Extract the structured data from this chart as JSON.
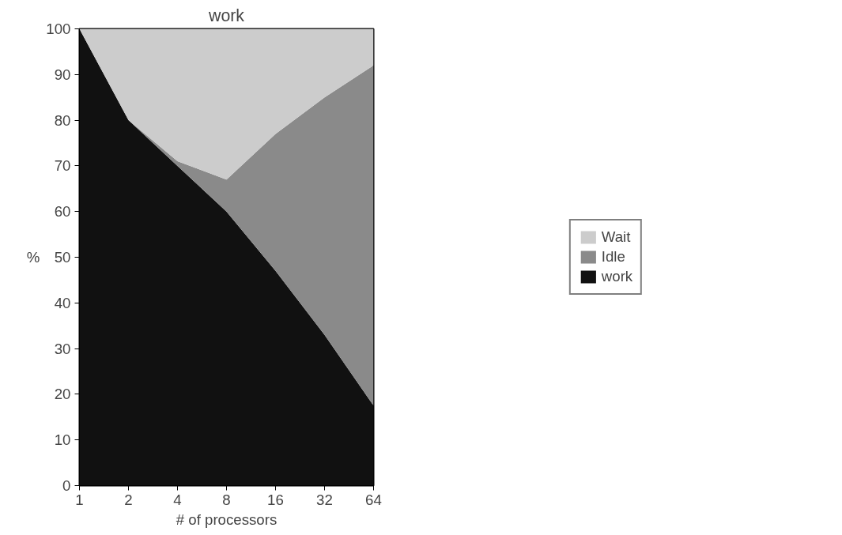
{
  "chart_data": {
    "type": "area",
    "stacked": true,
    "title": "work",
    "xlabel": "# of processors",
    "ylabel": "%",
    "categories": [
      "1",
      "2",
      "4",
      "8",
      "16",
      "32",
      "64"
    ],
    "series": [
      {
        "name": "work",
        "color": "#111111",
        "values": [
          100,
          80,
          70,
          60,
          47,
          33,
          17.5
        ]
      },
      {
        "name": "Idle",
        "color": "#8a8a8a",
        "values": [
          0,
          0,
          1,
          7,
          30,
          52,
          74.5
        ]
      },
      {
        "name": "Wait",
        "color": "#cccccc",
        "values": [
          0,
          20,
          29,
          33,
          23,
          15,
          8
        ]
      }
    ],
    "ylim": [
      0,
      100
    ],
    "yticks": [
      0,
      10,
      20,
      30,
      40,
      50,
      60,
      70,
      80,
      90,
      100
    ],
    "grid": false,
    "legend": "right"
  }
}
